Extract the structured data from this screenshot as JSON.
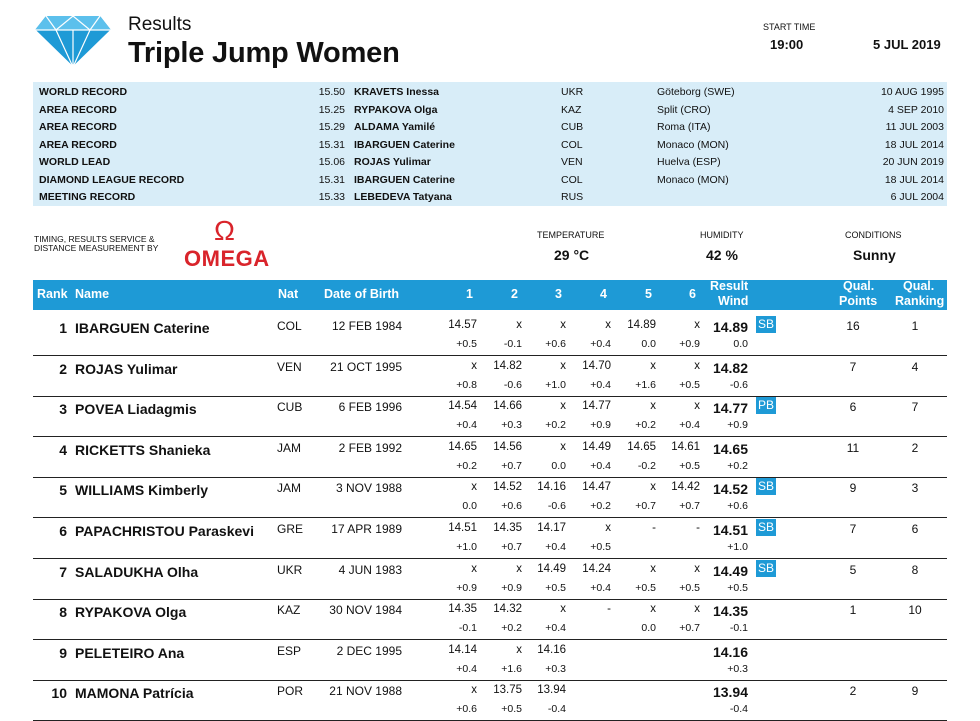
{
  "header": {
    "subtitle": "Results",
    "title": "Triple Jump Women",
    "start_time_label": "START TIME",
    "start_time": "19:00",
    "date": "5 JUL 2019"
  },
  "records": [
    {
      "name": "WORLD RECORD",
      "mark": "15.50",
      "athlete": "KRAVETS Inessa",
      "nat": "UKR",
      "venue": "Göteborg (SWE)",
      "date": "10 AUG 1995"
    },
    {
      "name": "AREA RECORD",
      "mark": "15.25",
      "athlete": "RYPAKOVA Olga",
      "nat": "KAZ",
      "venue": "Split (CRO)",
      "date": "4 SEP 2010"
    },
    {
      "name": "AREA RECORD",
      "mark": "15.29",
      "athlete": "ALDAMA Yamilé",
      "nat": "CUB",
      "venue": "Roma (ITA)",
      "date": "11 JUL 2003"
    },
    {
      "name": "AREA RECORD",
      "mark": "15.31",
      "athlete": "IBARGUEN Caterine",
      "nat": "COL",
      "venue": "Monaco (MON)",
      "date": "18 JUL 2014"
    },
    {
      "name": "WORLD LEAD",
      "mark": "15.06",
      "athlete": "ROJAS Yulimar",
      "nat": "VEN",
      "venue": "Huelva (ESP)",
      "date": "20 JUN 2019"
    },
    {
      "name": "DIAMOND LEAGUE RECORD",
      "mark": "15.31",
      "athlete": "IBARGUEN Caterine",
      "nat": "COL",
      "venue": "Monaco (MON)",
      "date": "18 JUL 2014"
    },
    {
      "name": "MEETING RECORD",
      "mark": "15.33",
      "athlete": "LEBEDEVA Tatyana",
      "nat": "RUS",
      "venue": "",
      "date": "6 JUL 2004"
    }
  ],
  "timing": {
    "line1": "TIMING, RESULTS SERVICE &",
    "line2": "DISTANCE MEASUREMENT BY",
    "omega_symbol": "Ω",
    "omega_word": "OMEGA"
  },
  "weather": {
    "temperature_label": "TEMPERATURE",
    "temperature": "29 °C",
    "humidity_label": "HUMIDITY",
    "humidity": "42 %",
    "conditions_label": "CONDITIONS",
    "conditions": "Sunny"
  },
  "columns": {
    "rank": "Rank",
    "name": "Name",
    "nat": "Nat",
    "dob": "Date of Birth",
    "a1": "1",
    "a2": "2",
    "a3": "3",
    "a4": "4",
    "a5": "5",
    "a6": "6",
    "result_top": "Result",
    "result_bot": "Wind",
    "qp_top": "Qual.",
    "qp_bot": "Points",
    "qr_top": "Qual.",
    "qr_bot": "Ranking"
  },
  "results": [
    {
      "rank": "1",
      "name": "IBARGUEN Caterine",
      "nat": "COL",
      "dob": "12 FEB 1984",
      "att": [
        "14.57",
        "x",
        "x",
        "x",
        "14.89",
        "x"
      ],
      "wind": [
        "+0.5",
        "-0.1",
        "+0.6",
        "+0.4",
        "0.0",
        "+0.9"
      ],
      "result": "14.89",
      "rwind": "0.0",
      "badge": "SB",
      "qp": "16",
      "qr": "1"
    },
    {
      "rank": "2",
      "name": "ROJAS Yulimar",
      "nat": "VEN",
      "dob": "21 OCT 1995",
      "att": [
        "x",
        "14.82",
        "x",
        "14.70",
        "x",
        "x"
      ],
      "wind": [
        "+0.8",
        "-0.6",
        "+1.0",
        "+0.4",
        "+1.6",
        "+0.5"
      ],
      "result": "14.82",
      "rwind": "-0.6",
      "badge": "",
      "qp": "7",
      "qr": "4"
    },
    {
      "rank": "3",
      "name": "POVEA Liadagmis",
      "nat": "CUB",
      "dob": "6 FEB 1996",
      "att": [
        "14.54",
        "14.66",
        "x",
        "14.77",
        "x",
        "x"
      ],
      "wind": [
        "+0.4",
        "+0.3",
        "+0.2",
        "+0.9",
        "+0.2",
        "+0.4"
      ],
      "result": "14.77",
      "rwind": "+0.9",
      "badge": "PB",
      "qp": "6",
      "qr": "7"
    },
    {
      "rank": "4",
      "name": "RICKETTS Shanieka",
      "nat": "JAM",
      "dob": "2 FEB 1992",
      "att": [
        "14.65",
        "14.56",
        "x",
        "14.49",
        "14.65",
        "14.61"
      ],
      "wind": [
        "+0.2",
        "+0.7",
        "0.0",
        "+0.4",
        "-0.2",
        "+0.5"
      ],
      "result": "14.65",
      "rwind": "+0.2",
      "badge": "",
      "qp": "11",
      "qr": "2"
    },
    {
      "rank": "5",
      "name": "WILLIAMS Kimberly",
      "nat": "JAM",
      "dob": "3 NOV 1988",
      "att": [
        "x",
        "14.52",
        "14.16",
        "14.47",
        "x",
        "14.42"
      ],
      "wind": [
        "0.0",
        "+0.6",
        "-0.6",
        "+0.2",
        "+0.7",
        "+0.7"
      ],
      "result": "14.52",
      "rwind": "+0.6",
      "badge": "SB",
      "qp": "9",
      "qr": "3"
    },
    {
      "rank": "6",
      "name": "PAPACHRISTOU Paraskevi",
      "nat": "GRE",
      "dob": "17 APR 1989",
      "att": [
        "14.51",
        "14.35",
        "14.17",
        "x",
        "-",
        "-"
      ],
      "wind": [
        "+1.0",
        "+0.7",
        "+0.4",
        "+0.5",
        "",
        ""
      ],
      "result": "14.51",
      "rwind": "+1.0",
      "badge": "SB",
      "qp": "7",
      "qr": "6"
    },
    {
      "rank": "7",
      "name": "SALADUKHA Olha",
      "nat": "UKR",
      "dob": "4 JUN 1983",
      "att": [
        "x",
        "x",
        "14.49",
        "14.24",
        "x",
        "x"
      ],
      "wind": [
        "+0.9",
        "+0.9",
        "+0.5",
        "+0.4",
        "+0.5",
        "+0.5"
      ],
      "result": "14.49",
      "rwind": "+0.5",
      "badge": "SB",
      "qp": "5",
      "qr": "8"
    },
    {
      "rank": "8",
      "name": "RYPAKOVA Olga",
      "nat": "KAZ",
      "dob": "30 NOV 1984",
      "att": [
        "14.35",
        "14.32",
        "x",
        "-",
        "x",
        "x"
      ],
      "wind": [
        "-0.1",
        "+0.2",
        "+0.4",
        "",
        "0.0",
        "+0.7"
      ],
      "result": "14.35",
      "rwind": "-0.1",
      "badge": "",
      "qp": "1",
      "qr": "10"
    },
    {
      "rank": "9",
      "name": "PELETEIRO Ana",
      "nat": "ESP",
      "dob": "2 DEC 1995",
      "att": [
        "14.14",
        "x",
        "14.16",
        "",
        "",
        ""
      ],
      "wind": [
        "+0.4",
        "+1.6",
        "+0.3",
        "",
        "",
        ""
      ],
      "result": "14.16",
      "rwind": "+0.3",
      "badge": "",
      "qp": "",
      "qr": ""
    },
    {
      "rank": "10",
      "name": "MAMONA Patrícia",
      "nat": "POR",
      "dob": "21 NOV 1988",
      "att": [
        "x",
        "13.75",
        "13.94",
        "",
        "",
        ""
      ],
      "wind": [
        "+0.6",
        "+0.5",
        "-0.4",
        "",
        "",
        ""
      ],
      "result": "13.94",
      "rwind": "-0.4",
      "badge": "",
      "qp": "2",
      "qr": "9"
    }
  ]
}
